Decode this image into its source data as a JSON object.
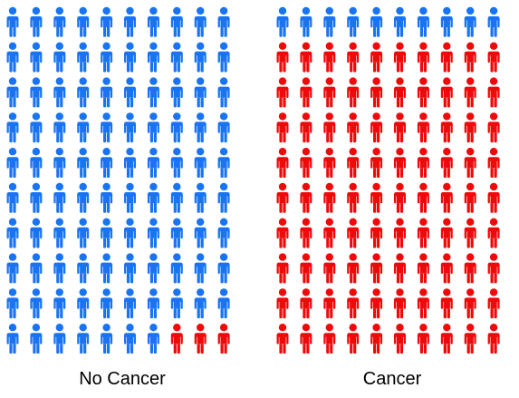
{
  "chart_data": {
    "type": "pictogram",
    "rows": 10,
    "columns": 10,
    "panels": [
      {
        "label": "No Cancer",
        "total": 100,
        "cancer_count": 3,
        "no_cancer_count": 97,
        "cancer_position": "bottom-right"
      },
      {
        "label": "Cancer",
        "total": 100,
        "cancer_count": 90,
        "no_cancer_count": 10,
        "cancer_position": "bottom"
      }
    ]
  },
  "colors": {
    "no_cancer": "#1a74f2",
    "cancer": "#ee0a0a",
    "background": "#ffffff"
  },
  "icon": "person-icon"
}
